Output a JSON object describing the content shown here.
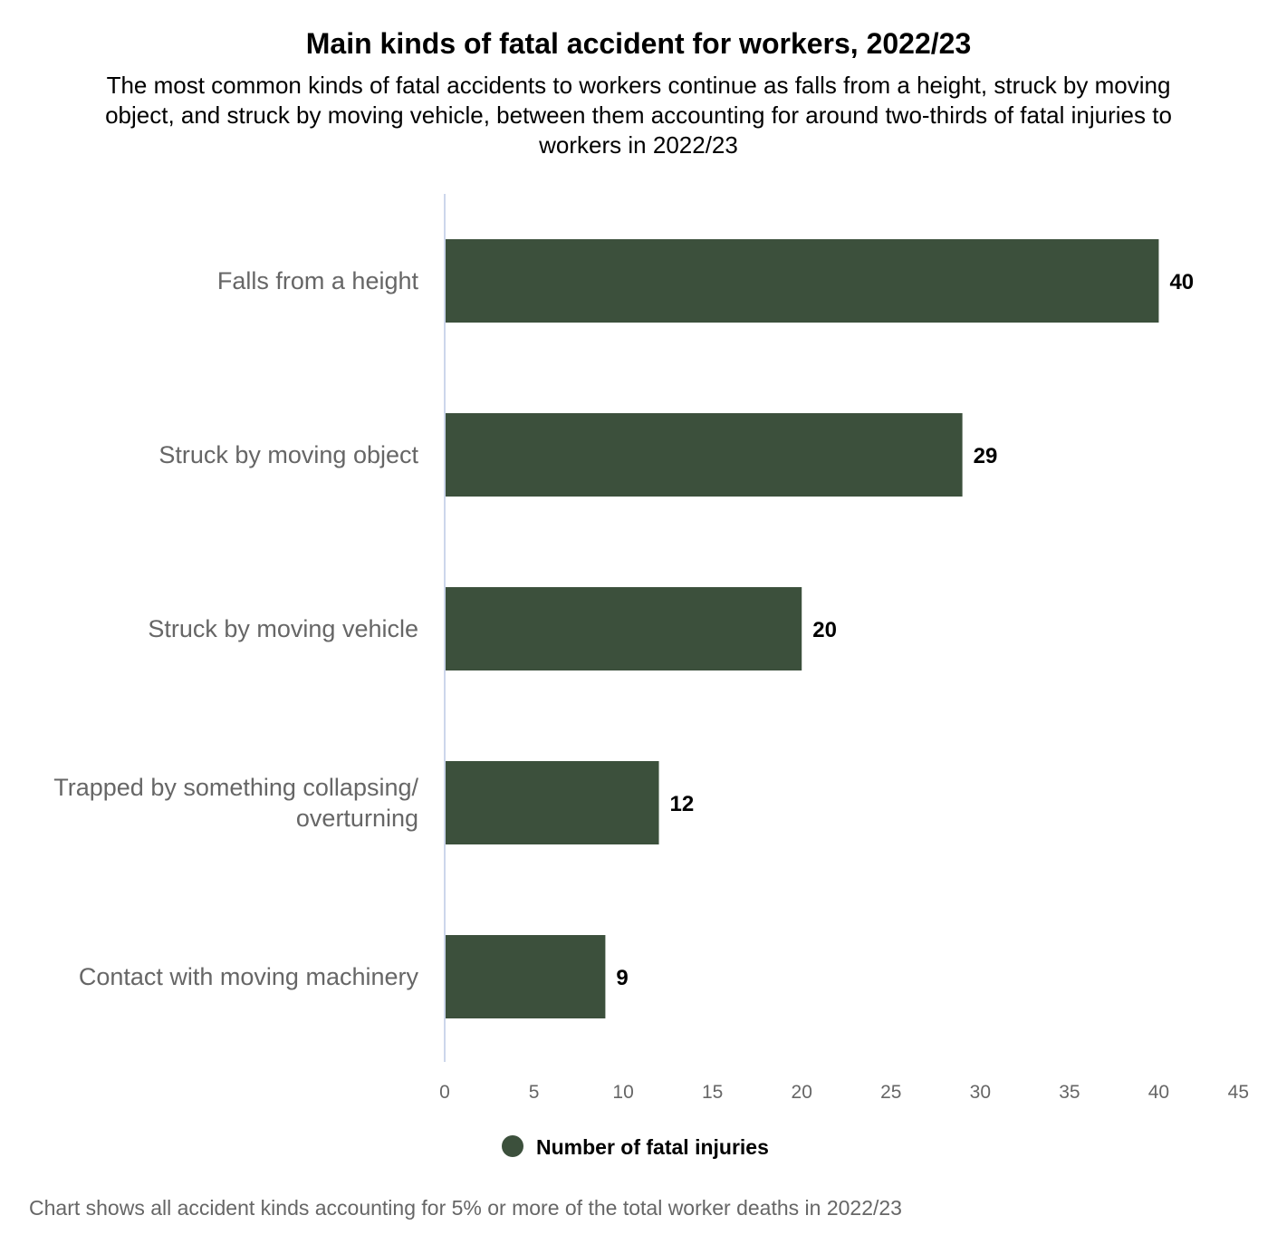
{
  "chart_data": {
    "type": "bar",
    "orientation": "horizontal",
    "title": "Main kinds of fatal accident for workers, 2022/23",
    "subtitle": "The most common kinds of fatal accidents to workers continue as falls from a height, struck by moving object, and struck by moving vehicle, between them accounting for around two-thirds of fatal injuries to workers in 2022/23",
    "categories": [
      [
        "Falls from a height"
      ],
      [
        "Struck by moving object"
      ],
      [
        "Struck by moving vehicle"
      ],
      [
        "Trapped by something collapsing/",
        "overturning"
      ],
      [
        "Contact with moving machinery"
      ]
    ],
    "series": [
      {
        "name": "Number of fatal injuries",
        "values": [
          40,
          29,
          20,
          12,
          9
        ],
        "color": "#3c503c"
      }
    ],
    "xlim": [
      0,
      45
    ],
    "xticks": [
      "0",
      "5",
      "10",
      "15",
      "20",
      "25",
      "30",
      "35",
      "40",
      "45"
    ],
    "grid": false,
    "legend_position": "bottom",
    "footnote": "Chart shows all accident kinds accounting for 5% or more of the total worker deaths in 2022/23"
  }
}
